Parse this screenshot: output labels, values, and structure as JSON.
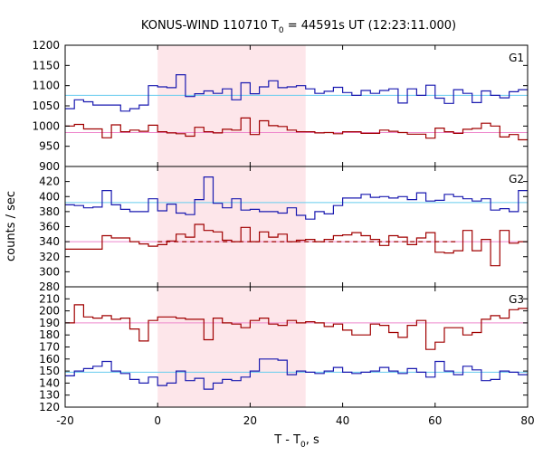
{
  "title": "KONUS-WIND 110710 T",
  "title_sub": "0",
  "title_rest": " = 44591s UT (12:23:11.000)",
  "xlabel": "T - T",
  "xlabel_sub": "0",
  "xlabel_rest": ", s",
  "ylabel": "counts / sec",
  "colors": {
    "blue": "#1a1ab0",
    "red": "#a00000",
    "blue_bg": "#66ccee",
    "red_bg": "#ee88cc",
    "shade": "#fde6ea"
  },
  "chart_data": {
    "type": "step",
    "xlim": [
      -20,
      80
    ],
    "xticks": [
      -20,
      0,
      20,
      40,
      60,
      80
    ],
    "shaded_interval": [
      0,
      32
    ],
    "bin_width": 2,
    "bin_edges_start": -20,
    "panels": [
      {
        "label": "G1",
        "ylim": [
          900,
          1200
        ],
        "yticks": [
          900,
          950,
          1000,
          1050,
          1100,
          1150,
          1200
        ],
        "series": [
          {
            "color": "blue",
            "values": [
              1043,
              1065,
              1060,
              1052,
              1052,
              1052,
              1037,
              1043,
              1052,
              1100,
              1097,
              1095,
              1127,
              1073,
              1080,
              1087,
              1081,
              1092,
              1065,
              1107,
              1080,
              1097,
              1112,
              1095,
              1097,
              1100,
              1092,
              1081,
              1086,
              1096,
              1083,
              1076,
              1088,
              1081,
              1088,
              1092,
              1057,
              1092,
              1076,
              1101,
              1069,
              1056,
              1090,
              1081,
              1058,
              1087,
              1076,
              1070,
              1085,
              1090
            ]
          },
          {
            "color": "red",
            "values": [
              1000,
              1004,
              993,
              993,
              971,
              1003,
              986,
              990,
              987,
              1002,
              986,
              983,
              981,
              975,
              997,
              986,
              983,
              992,
              990,
              1020,
              979,
              1013,
              1001,
              999,
              990,
              986,
              986,
              983,
              984,
              981,
              986,
              986,
              982,
              982,
              990,
              987,
              984,
              980,
              980,
              970,
              995,
              986,
              982,
              992,
              994,
              1007,
              1000,
              973,
              979,
              966
            ]
          }
        ],
        "bg_blue": 1076,
        "bg_red": 984
      },
      {
        "label": "G2",
        "ylim": [
          280,
          440
        ],
        "yticks": [
          280,
          300,
          320,
          340,
          360,
          380,
          400,
          420
        ],
        "series": [
          {
            "color": "blue",
            "values": [
              389,
              388,
              385,
              386,
              408,
              389,
              383,
              380,
              380,
              397,
              381,
              390,
              378,
              376,
              396,
              426,
              391,
              385,
              397,
              382,
              383,
              380,
              380,
              378,
              385,
              375,
              370,
              380,
              377,
              388,
              398,
              398,
              403,
              399,
              400,
              398,
              400,
              396,
              405,
              394,
              395,
              403,
              400,
              397,
              394,
              397,
              382,
              384,
              380,
              408
            ]
          },
          {
            "color": "red",
            "values": [
              330,
              330,
              330,
              330,
              348,
              345,
              345,
              340,
              337,
              334,
              336,
              341,
              350,
              346,
              363,
              355,
              353,
              342,
              340,
              359,
              340,
              353,
              346,
              350,
              340,
              342,
              343,
              340,
              343,
              348,
              349,
              352,
              348,
              343,
              335,
              348,
              346,
              336,
              345,
              352,
              326,
              325,
              328,
              355,
              328,
              343,
              308,
              355,
              338,
              340
            ]
          }
        ],
        "bg_blue": 392,
        "bg_red": 340
      },
      {
        "label": "G3",
        "ylim": [
          120,
          220
        ],
        "yticks": [
          120,
          130,
          140,
          150,
          160,
          170,
          180,
          190,
          200,
          210
        ],
        "series": [
          {
            "color": "red",
            "values": [
              190,
              205,
              195,
              194,
              196,
              193,
              194,
              185,
              175,
              192,
              195,
              195,
              194,
              193,
              193,
              176,
              194,
              190,
              189,
              186,
              192,
              194,
              189,
              188,
              192,
              190,
              191,
              190,
              187,
              189,
              184,
              180,
              180,
              189,
              188,
              182,
              178,
              188,
              192,
              168,
              174,
              186,
              186,
              180,
              182,
              193,
              196,
              194,
              201,
              202
            ]
          },
          {
            "color": "blue",
            "values": [
              146,
              150,
              152,
              154,
              158,
              150,
              148,
              143,
              140,
              145,
              138,
              140,
              150,
              142,
              144,
              135,
              140,
              143,
              142,
              145,
              150,
              160,
              160,
              159,
              147,
              150,
              149,
              148,
              150,
              153,
              149,
              148,
              149,
              150,
              153,
              150,
              148,
              152,
              149,
              145,
              158,
              150,
              147,
              154,
              151,
              142,
              143,
              150,
              149,
              147
            ]
          }
        ],
        "bg_blue": 149,
        "bg_red": 190
      }
    ]
  }
}
